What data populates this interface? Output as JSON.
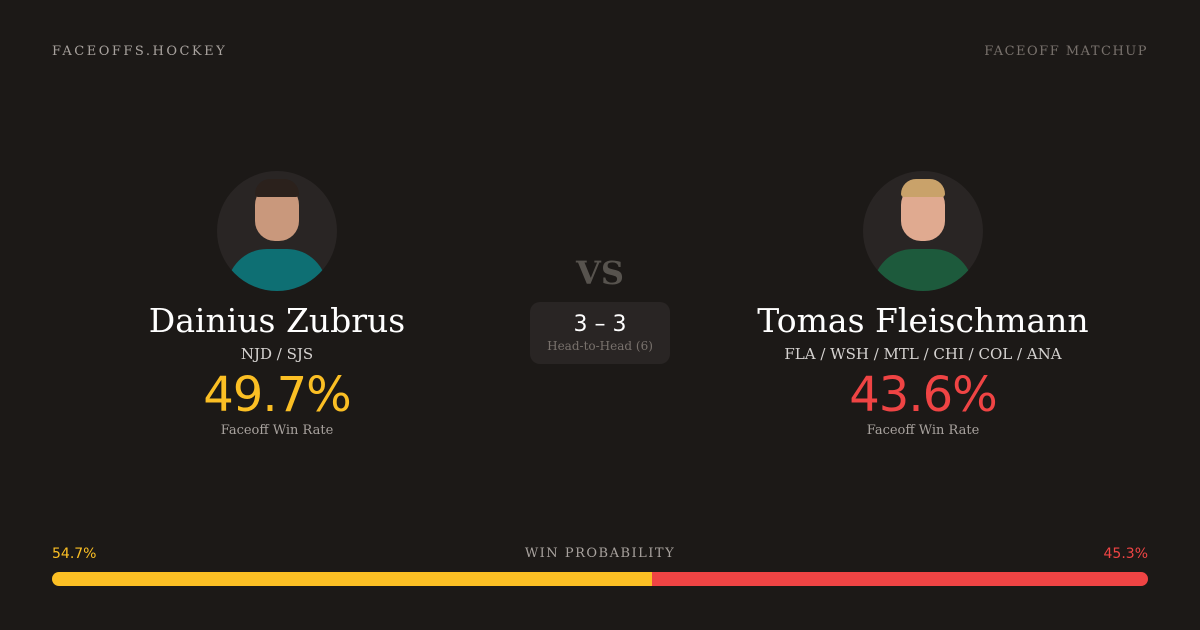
{
  "header": {
    "brand": "FACEOFFS.HOCKEY",
    "tag": "FACEOFF MATCHUP"
  },
  "player1": {
    "name": "Dainius Zubrus",
    "teams": "NJD / SJS",
    "win_rate": "49.7%",
    "win_rate_label": "Faceoff Win Rate",
    "color": "#fbbf24"
  },
  "player2": {
    "name": "Tomas Fleischmann",
    "teams": "FLA / WSH / MTL / CHI / COL / ANA",
    "win_rate": "43.6%",
    "win_rate_label": "Faceoff Win Rate",
    "color": "#ef4444"
  },
  "vs": "VS",
  "head_to_head": {
    "score": "3 – 3",
    "label": "Head-to-Head (6)"
  },
  "win_probability": {
    "label": "WIN PROBABILITY",
    "left": "54.7%",
    "right": "45.3%",
    "left_value": 54.7,
    "right_value": 45.3
  }
}
